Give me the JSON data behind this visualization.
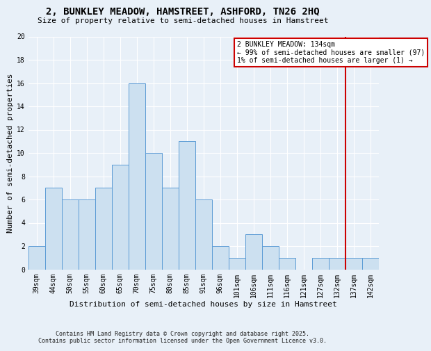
{
  "title": "2, BUNKLEY MEADOW, HAMSTREET, ASHFORD, TN26 2HQ",
  "subtitle": "Size of property relative to semi-detached houses in Hamstreet",
  "xlabel": "Distribution of semi-detached houses by size in Hamstreet",
  "ylabel": "Number of semi-detached properties",
  "categories": [
    "39sqm",
    "44sqm",
    "50sqm",
    "55sqm",
    "60sqm",
    "65sqm",
    "70sqm",
    "75sqm",
    "80sqm",
    "85sqm",
    "91sqm",
    "96sqm",
    "101sqm",
    "106sqm",
    "111sqm",
    "116sqm",
    "121sqm",
    "127sqm",
    "132sqm",
    "137sqm",
    "142sqm"
  ],
  "values": [
    2,
    7,
    6,
    6,
    7,
    9,
    16,
    10,
    7,
    11,
    6,
    2,
    1,
    3,
    2,
    1,
    0,
    1,
    1,
    1,
    1
  ],
  "bar_color": "#cce0f0",
  "bar_edge_color": "#5b9bd5",
  "vline_color": "#cc0000",
  "annotation_title": "2 BUNKLEY MEADOW: 134sqm",
  "annotation_line1": "← 99% of semi-detached houses are smaller (97)",
  "annotation_line2": "1% of semi-detached houses are larger (1) →",
  "annotation_box_color": "#cc0000",
  "footer_line1": "Contains HM Land Registry data © Crown copyright and database right 2025.",
  "footer_line2": "Contains public sector information licensed under the Open Government Licence v3.0.",
  "ylim": [
    0,
    20
  ],
  "background_color": "#e8f0f8",
  "plot_bg_color": "#e8f0f8",
  "grid_color": "#ffffff",
  "title_fontsize": 10,
  "subtitle_fontsize": 8,
  "ylabel_fontsize": 8,
  "xlabel_fontsize": 8,
  "tick_fontsize": 7,
  "footer_fontsize": 6
}
